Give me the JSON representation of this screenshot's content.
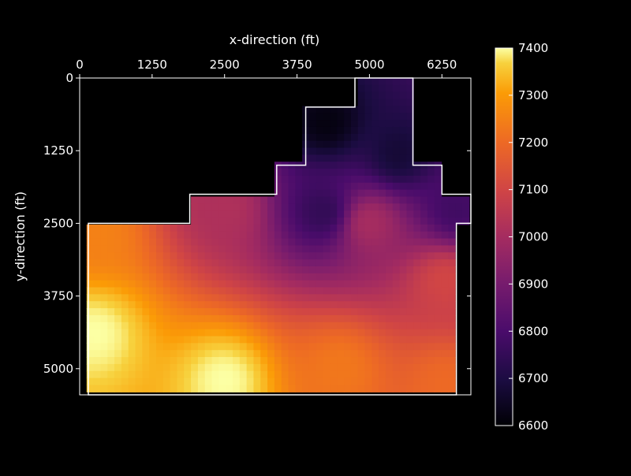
{
  "chart_data": {
    "type": "heatmap",
    "title": "",
    "xlabel": "x-direction (ft)",
    "ylabel": "y-direction (ft)",
    "x_ticks": [
      0,
      1250,
      2500,
      3750,
      5000,
      6250
    ],
    "y_ticks": [
      0,
      1250,
      2500,
      3750,
      5000
    ],
    "xlim": [
      0,
      6750
    ],
    "ylim": [
      0,
      5450
    ],
    "y_inverted": true,
    "x_axis_position": "top",
    "colormap": "inferno",
    "colorbar": {
      "range": [
        6600,
        7400
      ],
      "ticks": [
        6600,
        6700,
        6800,
        6900,
        7000,
        7100,
        7200,
        7300,
        7400
      ],
      "placement": "right"
    },
    "reservoir_boundary": [
      [
        4750,
        0
      ],
      [
        5750,
        0
      ],
      [
        5750,
        1500
      ],
      [
        6250,
        1500
      ],
      [
        6250,
        2000
      ],
      [
        6750,
        2000
      ],
      [
        6750,
        2500
      ],
      [
        6500,
        2500
      ],
      [
        6500,
        5450
      ],
      [
        150,
        5450
      ],
      [
        150,
        2500
      ],
      [
        1900,
        2500
      ],
      [
        1900,
        2000
      ],
      [
        3400,
        2000
      ],
      [
        3400,
        1500
      ],
      [
        3900,
        1500
      ],
      [
        3900,
        500
      ],
      [
        4750,
        500
      ]
    ],
    "pressure_field_description_points": [
      {
        "x": 250,
        "y": 2650,
        "value": 7250
      },
      {
        "x": 250,
        "y": 4400,
        "value": 7400
      },
      {
        "x": 2500,
        "y": 5200,
        "value": 7400
      },
      {
        "x": 4500,
        "y": 5000,
        "value": 7230
      },
      {
        "x": 6300,
        "y": 5300,
        "value": 7200
      },
      {
        "x": 6300,
        "y": 3500,
        "value": 7100
      },
      {
        "x": 5000,
        "y": 2500,
        "value": 7000
      },
      {
        "x": 4200,
        "y": 2300,
        "value": 6750
      },
      {
        "x": 2500,
        "y": 2250,
        "value": 7020
      },
      {
        "x": 4250,
        "y": 750,
        "value": 6620
      },
      {
        "x": 5500,
        "y": 1300,
        "value": 6680
      },
      {
        "x": 6500,
        "y": 2250,
        "value": 6780
      }
    ]
  }
}
